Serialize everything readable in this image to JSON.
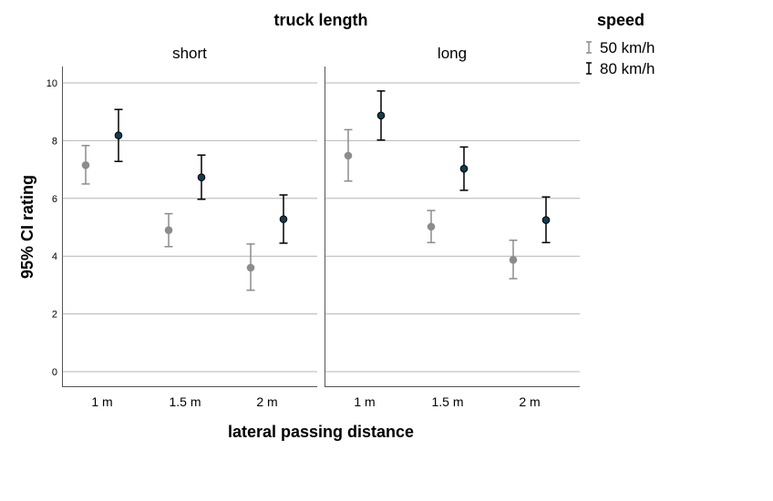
{
  "chart_data": {
    "type": "scatter",
    "subtype": "errorbar",
    "facet_title": "truck length",
    "xlabel": "lateral passing distance",
    "ylabel": "95% CI rating",
    "ylim": [
      -0.5,
      10.5
    ],
    "yticks": [
      0,
      2,
      4,
      6,
      8,
      10
    ],
    "grid": "horizontal",
    "legend": {
      "title": "speed",
      "position": "top-right",
      "entries": [
        "50 km/h",
        "80 km/h"
      ]
    },
    "categories": [
      "1 m",
      "1.5 m",
      "2 m"
    ],
    "panels": [
      {
        "label": "short",
        "series": [
          {
            "name": "50 km/h",
            "color": "#8c8c8c",
            "mean": [
              7.15,
              4.9,
              3.6
            ],
            "lower": [
              6.5,
              4.33,
              2.82
            ],
            "upper": [
              7.83,
              5.47,
              4.42
            ]
          },
          {
            "name": "80 km/h",
            "color": "#000000",
            "marker_fill": "#123c50",
            "mean": [
              8.18,
              6.73,
              5.28
            ],
            "lower": [
              7.28,
              5.97,
              4.45
            ],
            "upper": [
              9.08,
              7.5,
              6.12
            ]
          }
        ]
      },
      {
        "label": "long",
        "series": [
          {
            "name": "50 km/h",
            "color": "#8c8c8c",
            "mean": [
              7.48,
              5.02,
              3.87
            ],
            "lower": [
              6.6,
              4.47,
              3.22
            ],
            "upper": [
              8.38,
              5.58,
              4.55
            ]
          },
          {
            "name": "80 km/h",
            "color": "#000000",
            "marker_fill": "#123c50",
            "mean": [
              8.87,
              7.03,
              5.25
            ],
            "lower": [
              8.02,
              6.28,
              4.47
            ],
            "upper": [
              9.72,
              7.78,
              6.05
            ]
          }
        ]
      }
    ]
  }
}
